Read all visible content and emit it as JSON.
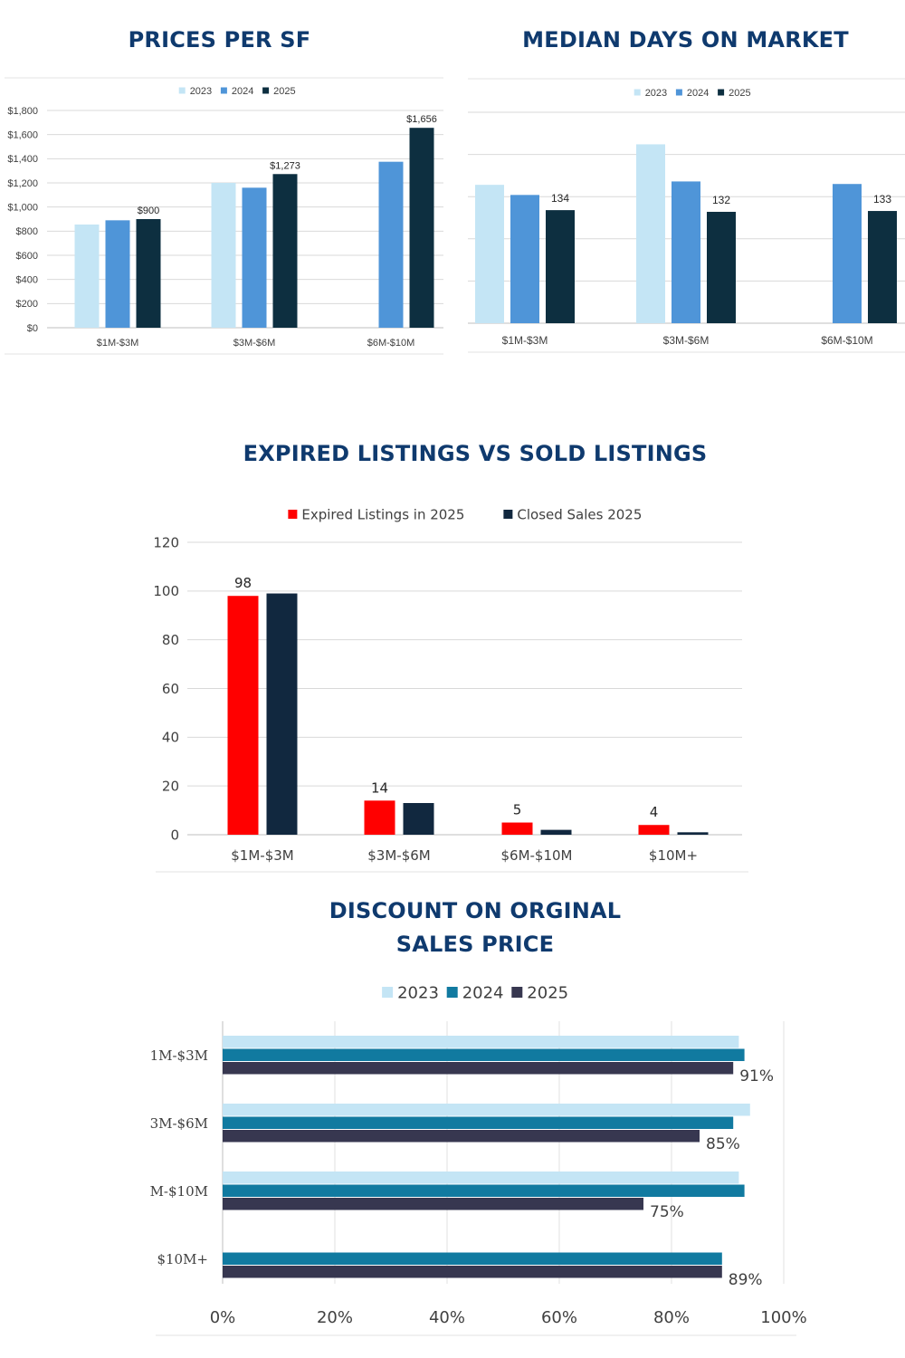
{
  "titles": {
    "prices_per_sf": "PRICES PER SF",
    "median_days": "MEDIAN DAYS ON MARKET",
    "expired_vs_sold": "EXPIRED LISTINGS VS SOLD LISTINGS",
    "discount_line1": "DISCOUNT ON ORGINAL",
    "discount_line2": "SALES PRICE"
  },
  "colors": {
    "light_blue": "#c4e5f5",
    "mid_blue": "#4f95d8",
    "navy": "#0d2f40",
    "red": "#ff0000",
    "dark_navy": "#11283f",
    "teal": "#117aa0",
    "slate": "#373750",
    "title": "#0f3a6e",
    "grid": "#d9d9d9"
  },
  "chart_data": [
    {
      "id": "prices_per_sf",
      "type": "bar",
      "categories": [
        "$1M-$3M",
        "$3M-$6M",
        "$6M-$10M"
      ],
      "series": [
        {
          "name": "2023",
          "values": [
            855,
            1200,
            null
          ]
        },
        {
          "name": "2024",
          "values": [
            890,
            1160,
            1375
          ]
        },
        {
          "name": "2025",
          "values": [
            900,
            1273,
            1656
          ]
        }
      ],
      "data_labels": [
        "$900",
        "$1,273",
        "$1,656"
      ],
      "ylim": [
        0,
        1800
      ],
      "ytick_labels": [
        "$0",
        "$200",
        "$400",
        "$600",
        "$800",
        "$1,000",
        "$1,200",
        "$1,400",
        "$1,600",
        "$1,800"
      ],
      "legend": "top",
      "grid": true
    },
    {
      "id": "median_days",
      "type": "bar",
      "categories": [
        "$1M-$3M",
        "$3M-$6M",
        "$6M-$10M"
      ],
      "series": [
        {
          "name": "2023",
          "values": [
            164,
            212,
            null
          ]
        },
        {
          "name": "2024",
          "values": [
            152,
            168,
            165
          ]
        },
        {
          "name": "2025",
          "values": [
            134,
            132,
            133
          ]
        }
      ],
      "data_labels": [
        "134",
        "132",
        "133"
      ],
      "ylim": [
        0,
        250
      ],
      "legend": "top",
      "grid": true
    },
    {
      "id": "expired_vs_sold",
      "type": "bar",
      "categories": [
        "$1M-$3M",
        "$3M-$6M",
        "$6M-$10M",
        "$10M+"
      ],
      "series": [
        {
          "name": "Expired Listings in 2025",
          "values": [
            98,
            14,
            5,
            4
          ]
        },
        {
          "name": "Closed Sales 2025",
          "values": [
            99,
            13,
            2,
            1
          ]
        }
      ],
      "data_labels": [
        "98",
        "14",
        "5",
        "4"
      ],
      "ylim": [
        0,
        120
      ],
      "ytick_labels": [
        "0",
        "20",
        "40",
        "60",
        "80",
        "100",
        "120"
      ],
      "legend": "top",
      "grid": true
    },
    {
      "id": "discount",
      "type": "bar",
      "orientation": "horizontal",
      "categories": [
        "1M-$3M",
        "3M-$6M",
        "M-$10M",
        "$10M+"
      ],
      "series": [
        {
          "name": "2023",
          "values": [
            92,
            94,
            92,
            null
          ]
        },
        {
          "name": "2024",
          "values": [
            93,
            91,
            93,
            89
          ]
        },
        {
          "name": "2025",
          "values": [
            91,
            85,
            75,
            89
          ]
        }
      ],
      "data_labels": [
        "91%",
        "85%",
        "75%",
        "89%"
      ],
      "xlim": [
        0,
        100
      ],
      "xtick_labels": [
        "0%",
        "20%",
        "40%",
        "60%",
        "80%",
        "100%"
      ],
      "legend": "top",
      "grid": true
    }
  ]
}
